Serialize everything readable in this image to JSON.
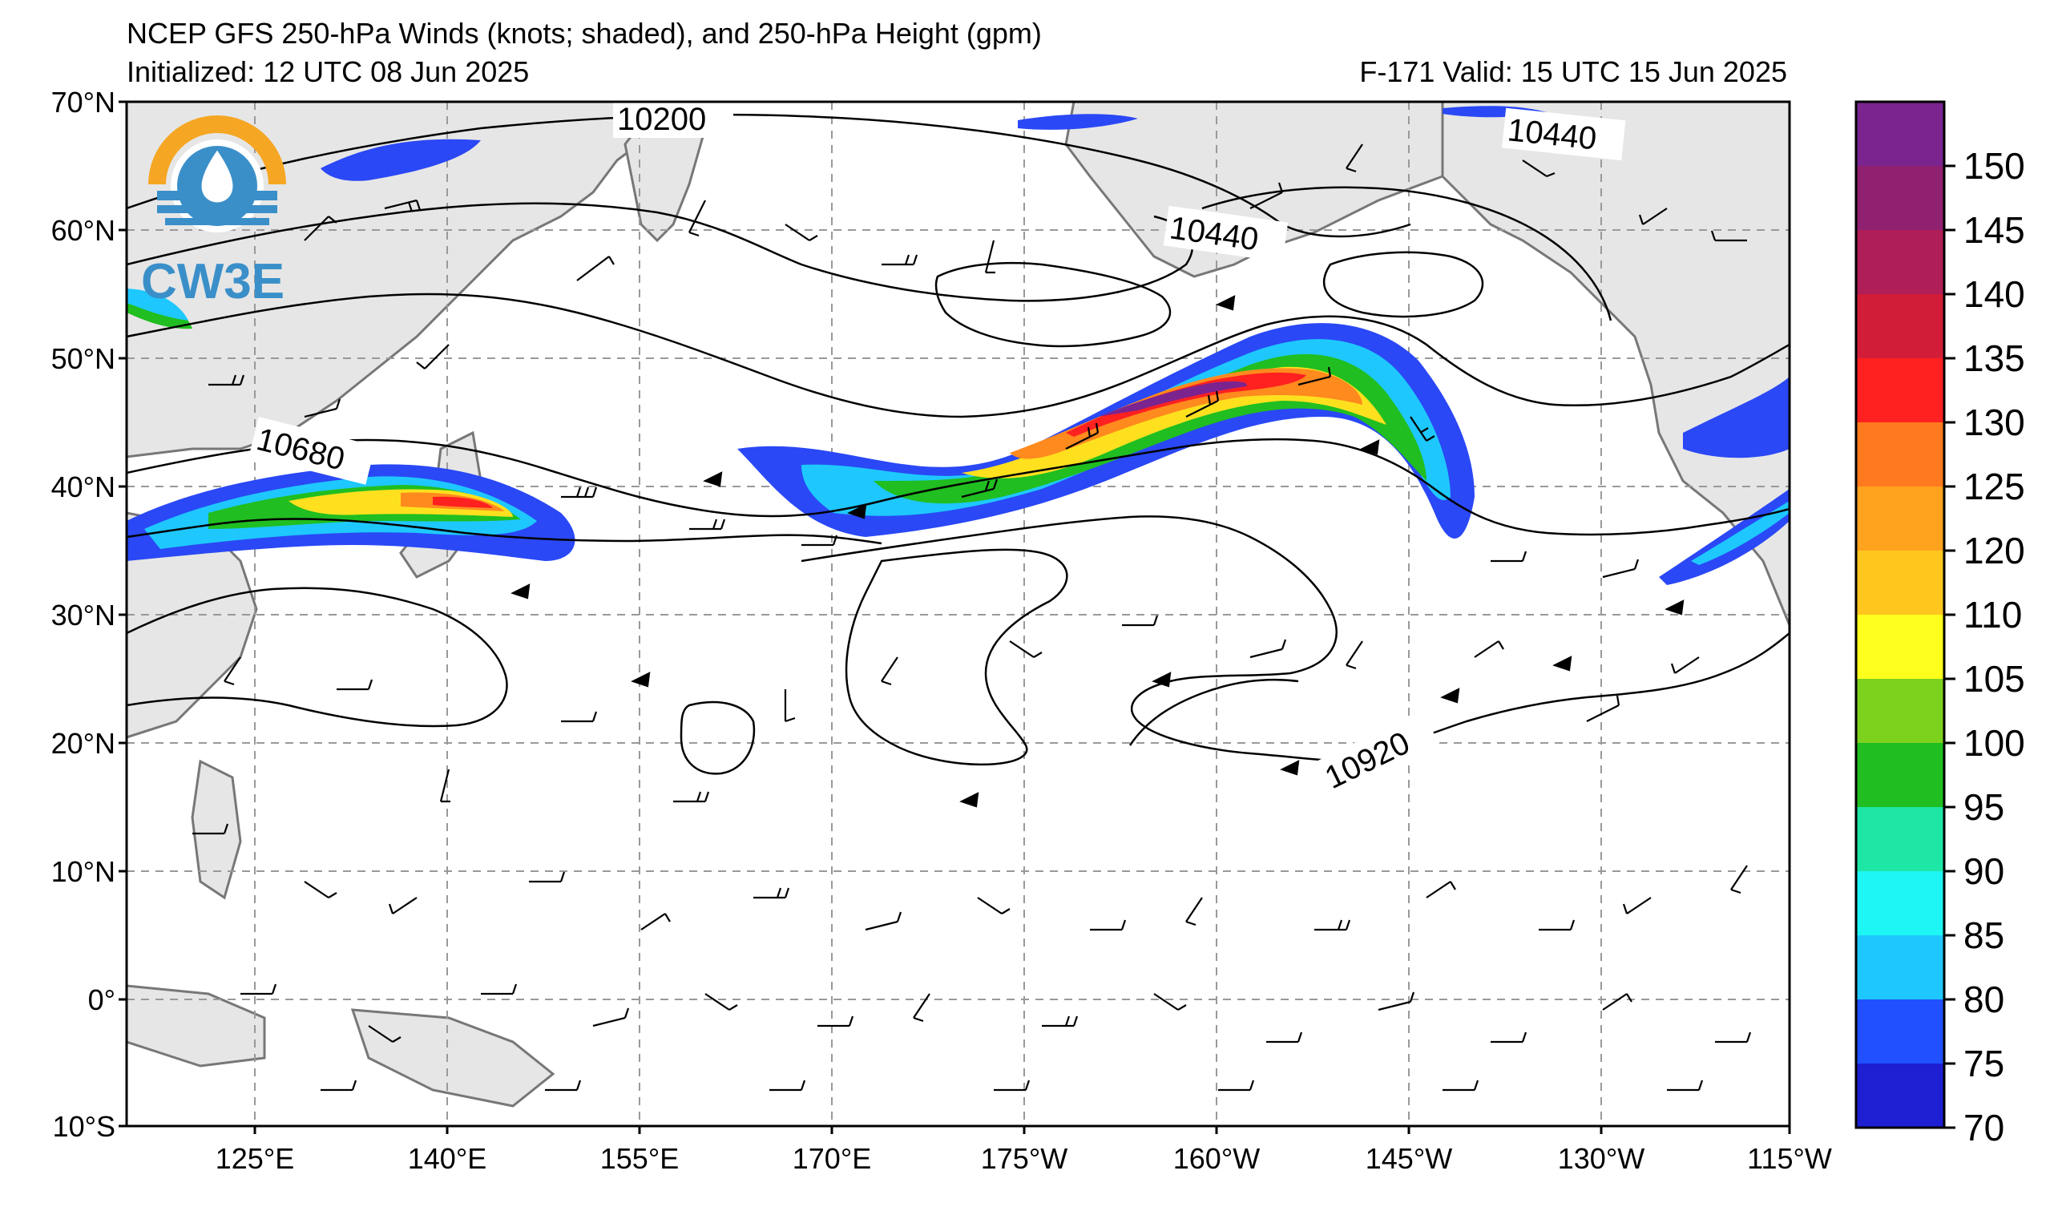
{
  "header": {
    "title": "NCEP GFS 250-hPa Winds (knots; shaded), and 250-hPa Height (gpm)",
    "initialized": "Initialized: 12 UTC 08 Jun 2025",
    "valid": "F-171  Valid: 15 UTC 15 Jun 2025"
  },
  "logo": {
    "text": "CW3E"
  },
  "axes": {
    "lat_labels": [
      "70°N",
      "60°N",
      "50°N",
      "40°N",
      "30°N",
      "20°N",
      "10°N",
      "0°",
      "10°S"
    ],
    "lon_labels": [
      "125°E",
      "140°E",
      "155°E",
      "170°E",
      "175°W",
      "160°W",
      "145°W",
      "130°W",
      "115°W"
    ]
  },
  "contour_labels": [
    "10200",
    "10440",
    "10440",
    "10680",
    "10920"
  ],
  "colorbar": {
    "ticks": [
      "150",
      "145",
      "140",
      "135",
      "130",
      "125",
      "120",
      "110",
      "105",
      "100",
      "95",
      "90",
      "85",
      "80",
      "75",
      "70"
    ],
    "colors": [
      "#7b2490",
      "#902070",
      "#b01e58",
      "#d21d38",
      "#ff2020",
      "#ff7a1e",
      "#ffa21e",
      "#ffc61e",
      "#ffff1e",
      "#7dd21e",
      "#20be20",
      "#1ee6a5",
      "#1ef5f5",
      "#1ec8ff",
      "#2050ff",
      "#1e1ed2"
    ]
  },
  "jet_colors": {
    "blue": "#2a48f5",
    "cyan": "#1ec8ff",
    "green": "#20be20",
    "yellow": "#ffe01e",
    "orange": "#ff8a1e",
    "red": "#ff2020",
    "purple": "#7b2490"
  },
  "land_color": "#e6e6e6"
}
